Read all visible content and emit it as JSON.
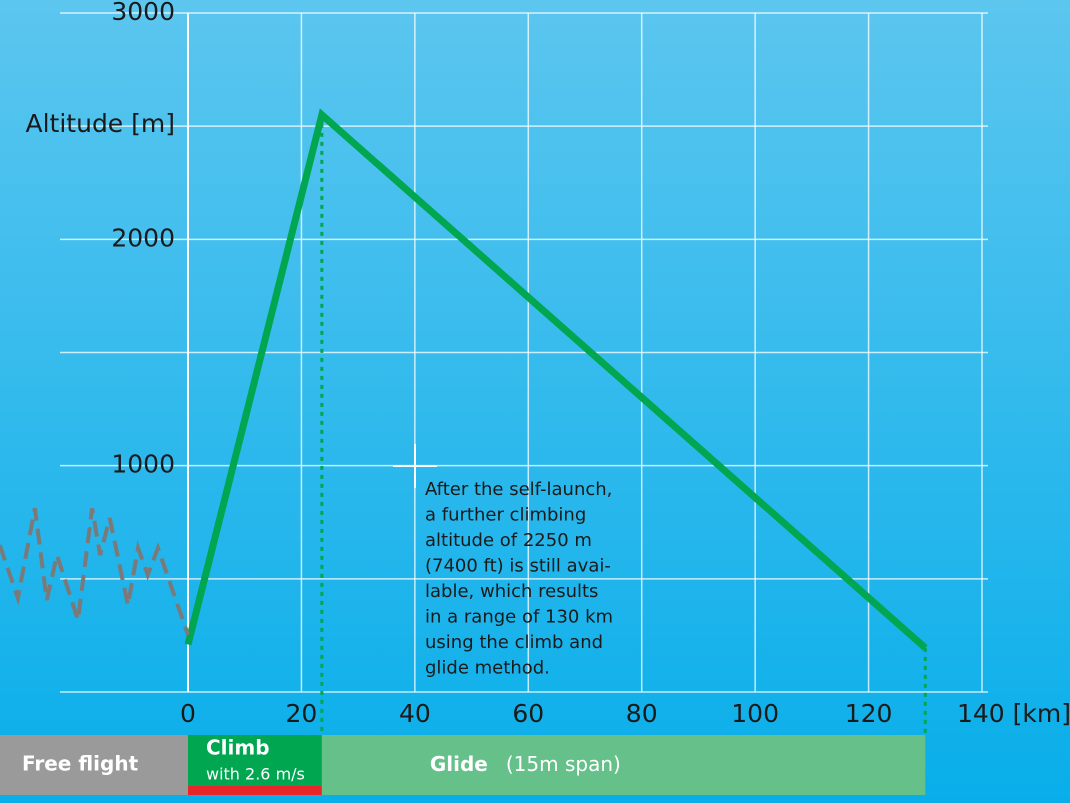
{
  "chart_data": {
    "type": "line",
    "xlim": [
      0,
      140
    ],
    "ylim": [
      0,
      3000
    ],
    "xticks": [
      0,
      20,
      40,
      60,
      80,
      100,
      120,
      {
        "value": 140,
        "label": "140 [km]"
      }
    ],
    "yticks": [
      1000,
      2000,
      3000
    ],
    "y_gridlines": [
      0,
      500,
      1000,
      1500,
      2000,
      2500,
      3000
    ],
    "ylabel": "Altitude [m]",
    "grid": true,
    "series": [
      {
        "color": "#00a650",
        "style": "solid",
        "x": [
          0,
          23.6,
          130
        ],
        "values": [
          210,
          2550,
          195
        ]
      },
      {
        "color": "#7a7a7a",
        "style": "dashed",
        "x": [
          -33.2,
          -30.0,
          -27.0,
          -24.9,
          -23.1,
          -19.4,
          -16.9,
          -15.5,
          -13.8,
          -10.6,
          -8.8,
          -7.1,
          -5.3,
          0
        ],
        "values": [
          649,
          415,
          812,
          406,
          605,
          318,
          812,
          605,
          768,
          384,
          636,
          517,
          636,
          252
        ]
      }
    ],
    "phases": [
      {
        "label": "Free flight",
        "color": "#9a9a9a",
        "xlim": [
          -33.2,
          0
        ]
      },
      {
        "label": "Climb",
        "sublabel": "with 2.6 m/s",
        "color": "#00a650",
        "xlim": [
          0,
          23.6
        ]
      },
      {
        "label": "Glide",
        "sublabel": "(15m span)",
        "color": "#66c08a",
        "xlim": [
          23.6,
          130
        ]
      }
    ],
    "annotation": [
      "After the self-launch,",
      "a further climbing",
      "altitude of 2250 m",
      "(7400 ft) is still avai-",
      "lable, which results",
      "in a range of 130 km",
      "using the climb and",
      "glide method."
    ]
  }
}
